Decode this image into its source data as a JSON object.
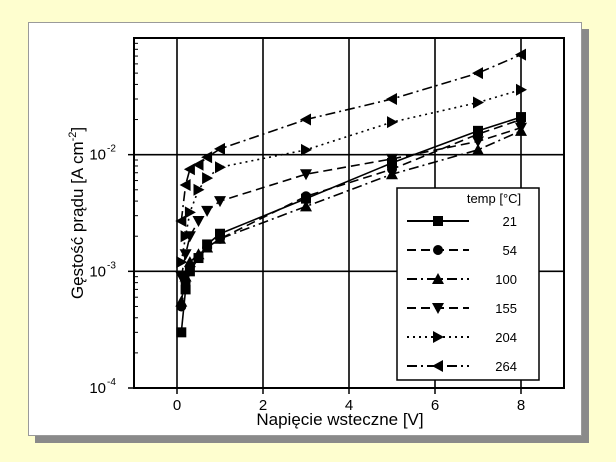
{
  "chart_data": {
    "type": "line",
    "xlabel": "Napięcie wsteczne [V]",
    "ylabel": "Gęstość prądu [A cm",
    "ylabel_sup": "-2",
    "ylabel_close": "]",
    "xlim": [
      -1.0,
      9.0
    ],
    "ylim_log10": [
      -4.0,
      -1.0
    ],
    "y_scale": "log",
    "grid": true,
    "x_ticks": [
      0,
      2,
      4,
      6,
      8
    ],
    "x_tick_labels": [
      "0",
      "2",
      "4",
      "6",
      "8"
    ],
    "y_ticks": [
      0.0001,
      0.001,
      0.01
    ],
    "y_tick_labels": [
      {
        "base": "10",
        "exp": "-4"
      },
      {
        "base": "10",
        "exp": "-3"
      },
      {
        "base": "10",
        "exp": "-2"
      }
    ],
    "legend": {
      "title": "temp [°C]",
      "placement": "lower-right"
    },
    "series": [
      {
        "name": "21",
        "marker": "square",
        "dash": "solid",
        "x": [
          0.1,
          0.2,
          0.3,
          0.5,
          0.7,
          1.0,
          3.0,
          5.0,
          7.0,
          8.0
        ],
        "y": [
          0.0003,
          0.0007,
          0.001,
          0.0013,
          0.0017,
          0.0021,
          0.0042,
          0.0085,
          0.016,
          0.021
        ]
      },
      {
        "name": "54",
        "marker": "circle",
        "dash": "dashed",
        "x": [
          0.1,
          0.2,
          0.3,
          0.5,
          0.7,
          1.0,
          3.0,
          5.0,
          7.0,
          8.0
        ],
        "y": [
          0.0005,
          0.0008,
          0.0011,
          0.0013,
          0.0016,
          0.0019,
          0.0044,
          0.0075,
          0.015,
          0.02
        ]
      },
      {
        "name": "100",
        "marker": "triangle-up",
        "dash": "dashdot",
        "x": [
          0.1,
          0.2,
          0.3,
          0.5,
          0.7,
          1.0,
          3.0,
          5.0,
          7.0,
          8.0
        ],
        "y": [
          0.00055,
          0.0009,
          0.0012,
          0.0014,
          0.0016,
          0.0019,
          0.0036,
          0.0068,
          0.011,
          0.016
        ]
      },
      {
        "name": "155",
        "marker": "triangle-down",
        "dash": "dashed",
        "x": [
          0.1,
          0.2,
          0.3,
          0.5,
          0.7,
          1.0,
          3.0,
          5.0,
          7.0,
          8.0
        ],
        "y": [
          0.0009,
          0.0014,
          0.002,
          0.0027,
          0.0033,
          0.004,
          0.0068,
          0.0092,
          0.013,
          0.017
        ]
      },
      {
        "name": "204",
        "marker": "triangle-right",
        "dash": "dotted",
        "x": [
          0.1,
          0.2,
          0.3,
          0.5,
          0.7,
          1.0,
          3.0,
          5.0,
          7.0,
          8.0
        ],
        "y": [
          0.0012,
          0.002,
          0.0032,
          0.005,
          0.0063,
          0.0078,
          0.011,
          0.019,
          0.028,
          0.036
        ]
      },
      {
        "name": "264",
        "marker": "triangle-left",
        "dash": "dashdot",
        "x": [
          0.1,
          0.2,
          0.3,
          0.5,
          0.7,
          1.0,
          3.0,
          5.0,
          7.0,
          8.0
        ],
        "y": [
          0.0027,
          0.0055,
          0.0075,
          0.0082,
          0.0095,
          0.0112,
          0.02,
          0.03,
          0.05,
          0.072
        ]
      }
    ]
  }
}
